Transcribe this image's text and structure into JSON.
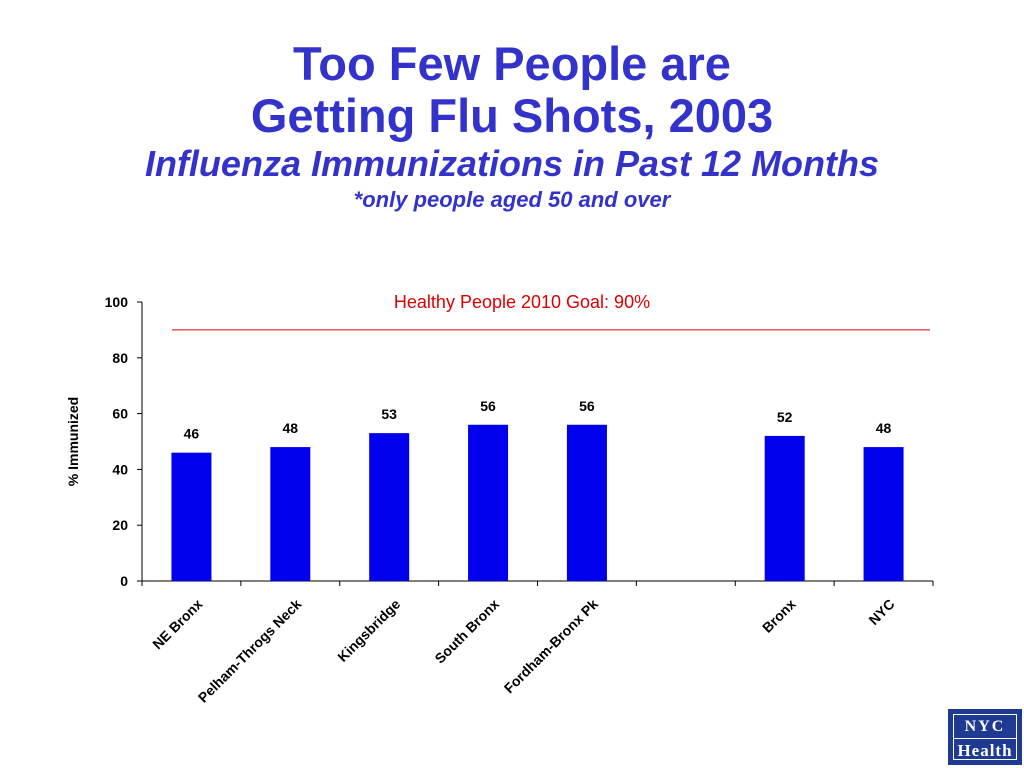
{
  "slide": {
    "title_line1": "Too Few People are",
    "title_line2": "Getting Flu Shots, 2003",
    "subtitle": "Influenza Immunizations in Past 12 Months",
    "note": "*only people aged 50 and over"
  },
  "logo": {
    "top": "NYC",
    "bottom": "Health"
  },
  "colors": {
    "title": "#3333cc",
    "bar": "#0000ee",
    "goal_line": "#dd0000"
  },
  "chart_data": {
    "type": "bar",
    "categories": [
      "NE Bronx",
      "Pelham-Throgs Neck",
      "Kingsbridge",
      "South Bronx",
      "Fordham-Bronx Pk",
      "",
      "Bronx",
      "NYC"
    ],
    "values": [
      46,
      48,
      53,
      56,
      56,
      null,
      52,
      48
    ],
    "data_labels": [
      "46",
      "48",
      "53",
      "56",
      "56",
      "",
      "52",
      "48"
    ],
    "ylabel": "% Immunized",
    "xlabel": "",
    "ylim": [
      0,
      100
    ],
    "yticks": [
      0,
      20,
      40,
      60,
      80,
      100
    ],
    "grid": false,
    "reference_line": {
      "value": 90,
      "label": "Healthy People 2010 Goal: 90%"
    }
  }
}
